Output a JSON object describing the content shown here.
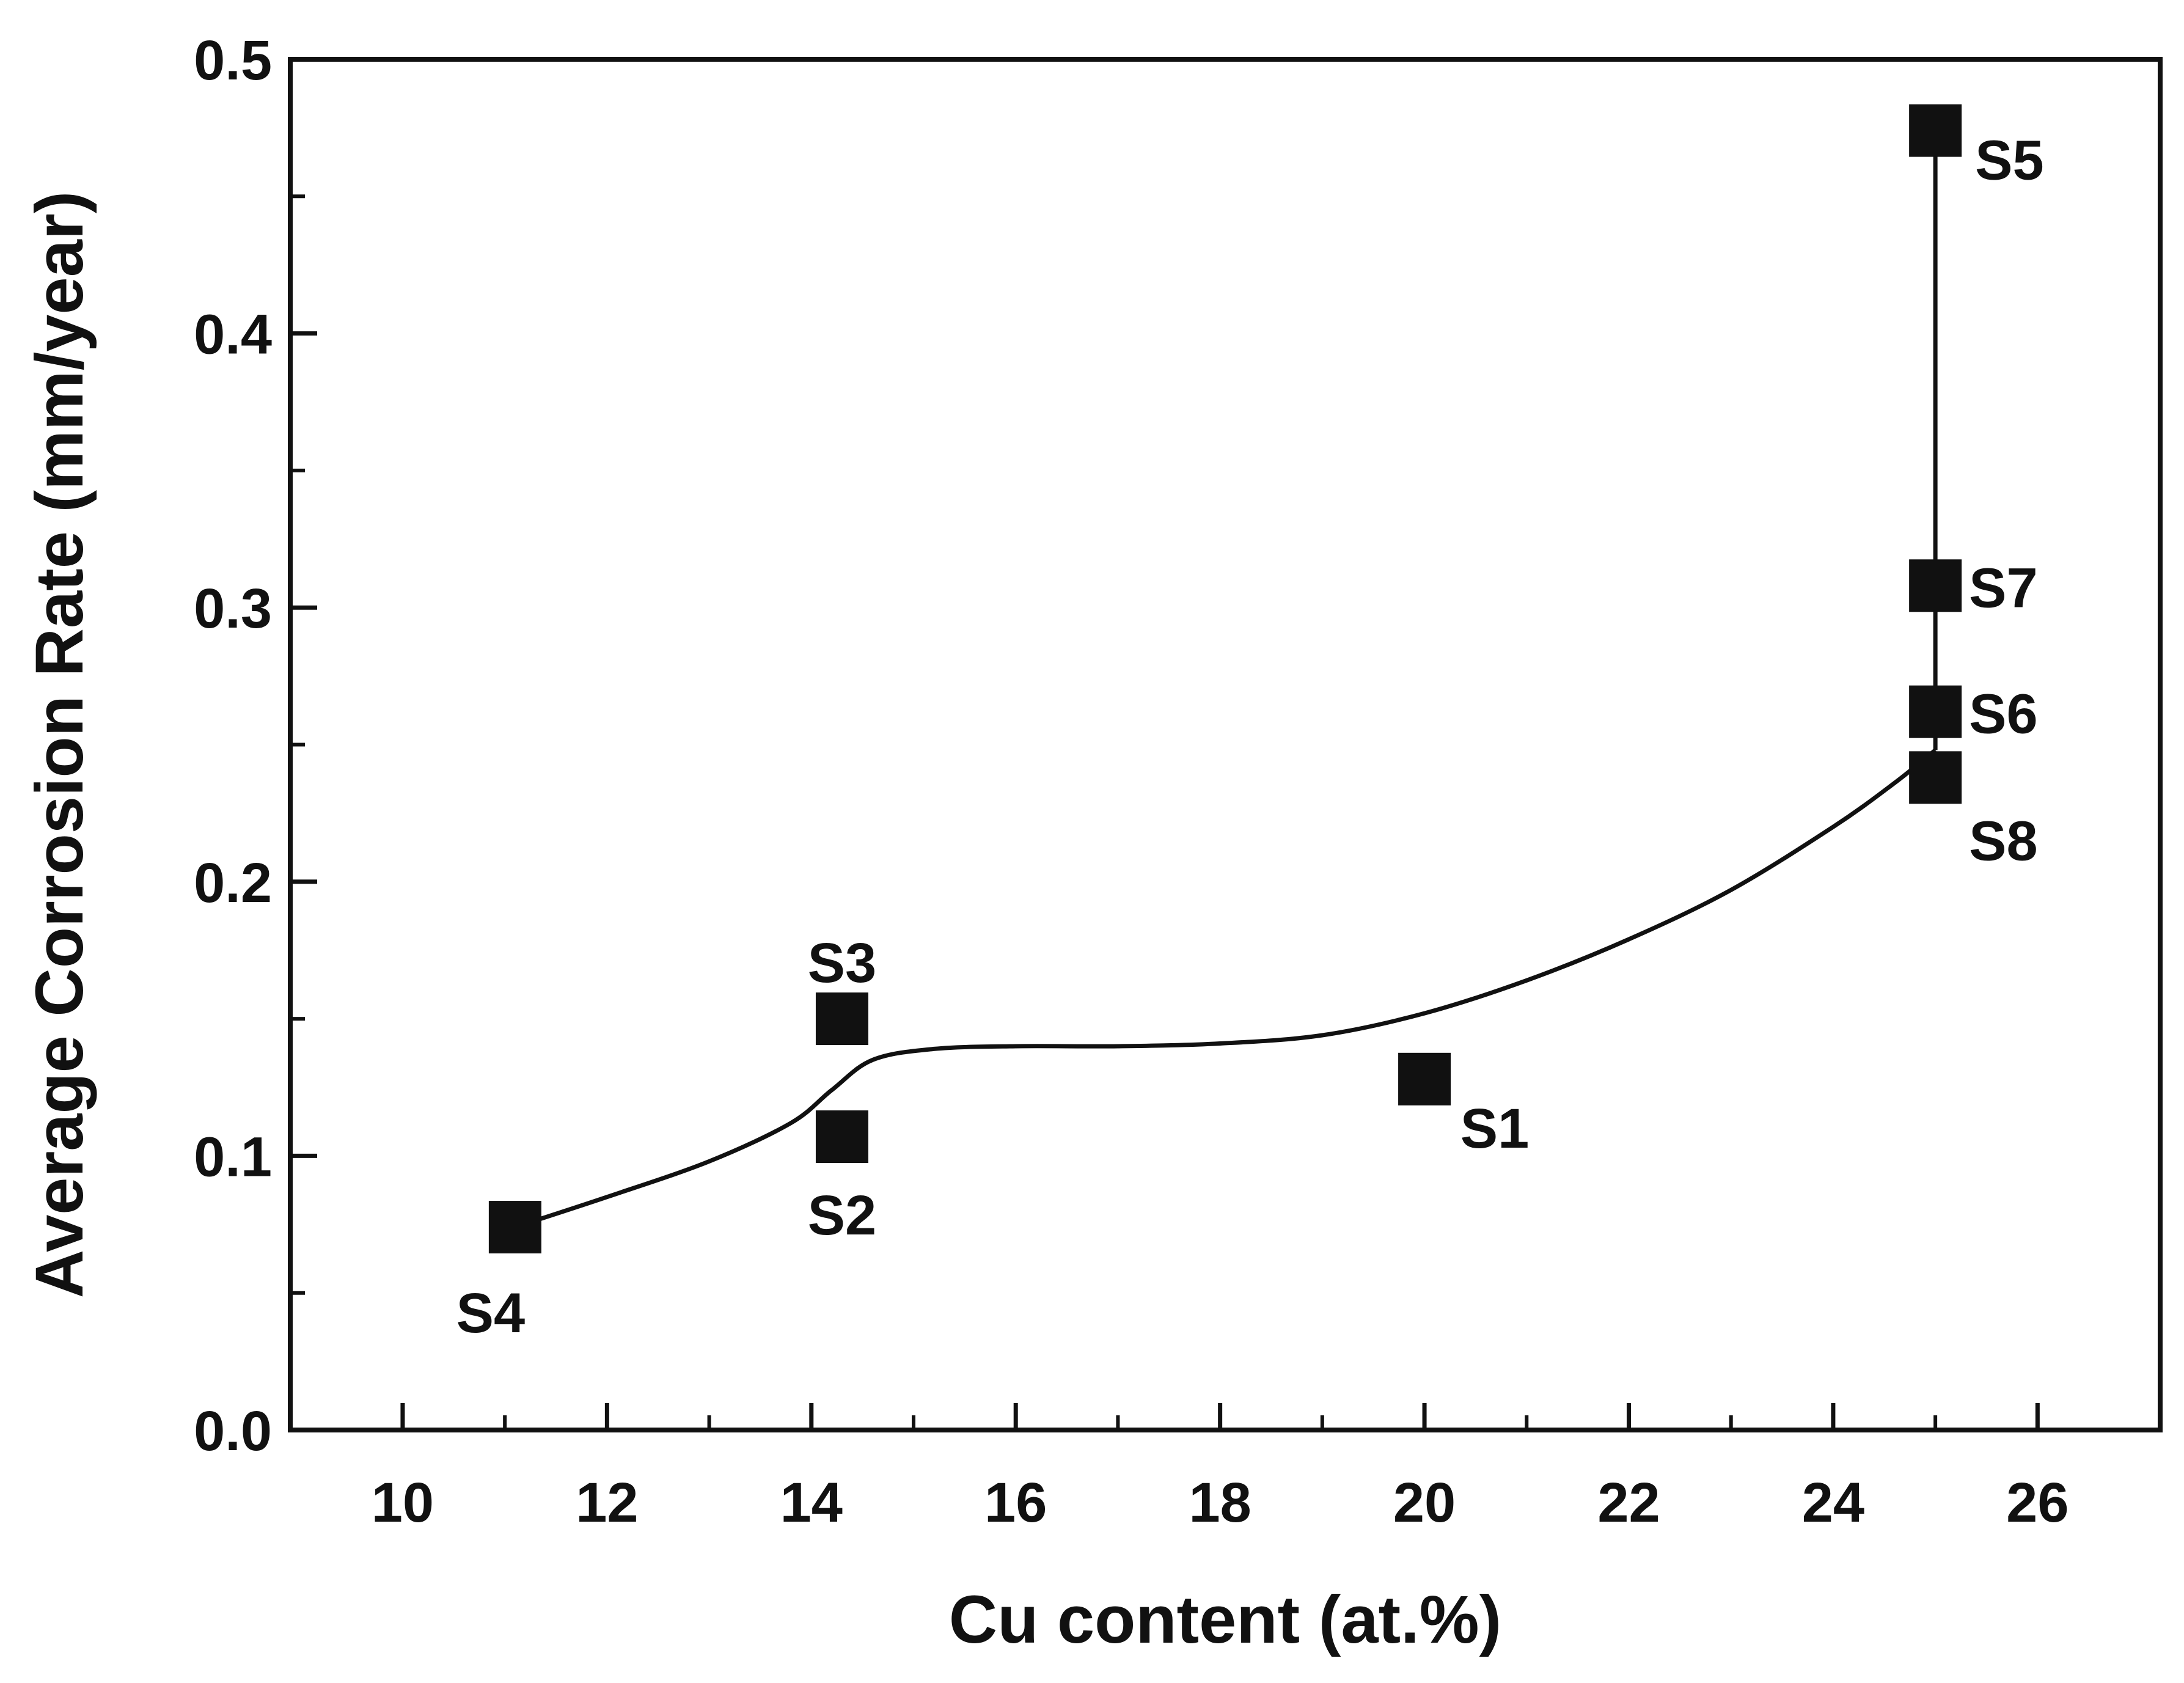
{
  "chart_data": {
    "type": "scatter",
    "xlabel": "Cu content (at.%)",
    "ylabel": "Average Corrosion Rate (mm/year)",
    "xlim": [
      8.9,
      27.2
    ],
    "ylim": [
      0.0,
      0.5
    ],
    "xticks": [
      {
        "value": 10,
        "label": "10"
      },
      {
        "value": 12,
        "label": "12"
      },
      {
        "value": 14,
        "label": "14"
      },
      {
        "value": 16,
        "label": "16"
      },
      {
        "value": 18,
        "label": "18"
      },
      {
        "value": 20,
        "label": "20"
      },
      {
        "value": 22,
        "label": "22"
      },
      {
        "value": 24,
        "label": "24"
      },
      {
        "value": 26,
        "label": "26"
      }
    ],
    "yticks": [
      {
        "value": 0.0,
        "label": "0.0"
      },
      {
        "value": 0.1,
        "label": "0.1"
      },
      {
        "value": 0.2,
        "label": "0.2"
      },
      {
        "value": 0.3,
        "label": "0.3"
      },
      {
        "value": 0.4,
        "label": "0.4"
      },
      {
        "value": 0.5,
        "label": "0.5"
      }
    ],
    "points": [
      {
        "label": "S1",
        "x": 20.0,
        "y": 0.128
      },
      {
        "label": "S2",
        "x": 14.3,
        "y": 0.107
      },
      {
        "label": "S3",
        "x": 14.3,
        "y": 0.15
      },
      {
        "label": "S4",
        "x": 11.1,
        "y": 0.074
      },
      {
        "label": "S5",
        "x": 25.0,
        "y": 0.474
      },
      {
        "label": "S6",
        "x": 25.0,
        "y": 0.262
      },
      {
        "label": "S7",
        "x": 25.0,
        "y": 0.308
      },
      {
        "label": "S8",
        "x": 25.0,
        "y": 0.238
      }
    ],
    "trend_curve": [
      [
        11.1,
        0.074
      ],
      [
        12.0,
        0.085
      ],
      [
        13.0,
        0.098
      ],
      [
        13.8,
        0.112
      ],
      [
        14.2,
        0.124
      ],
      [
        14.6,
        0.135
      ],
      [
        15.2,
        0.139
      ],
      [
        16.0,
        0.14
      ],
      [
        17.0,
        0.14
      ],
      [
        18.0,
        0.141
      ],
      [
        19.0,
        0.144
      ],
      [
        20.0,
        0.152
      ],
      [
        21.0,
        0.164
      ],
      [
        22.0,
        0.179
      ],
      [
        23.0,
        0.197
      ],
      [
        24.0,
        0.22
      ],
      [
        24.6,
        0.236
      ],
      [
        25.0,
        0.248
      ]
    ],
    "vertical_line": {
      "x": 25.0,
      "y_from": 0.248,
      "y_to": 0.474
    },
    "grid": false,
    "legend": "none"
  }
}
